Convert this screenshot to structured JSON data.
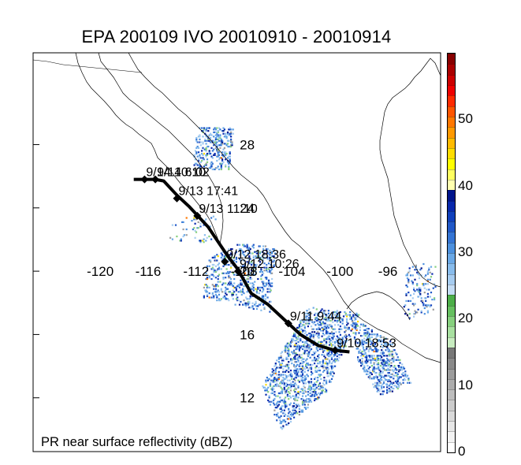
{
  "title": "EPA 200109 IVO 20010910 - 20010914",
  "footer": "PR near surface reflectivity (dBZ)",
  "chart_data": {
    "type": "map",
    "title": "EPA 200109 IVO 20010910 - 20010914",
    "lon_range": [
      -125.6,
      -91.6
    ],
    "lat_range": [
      8.6,
      33.8
    ],
    "lon_labels": [
      {
        "lon": -120,
        "text": "-120"
      },
      {
        "lon": -116,
        "text": "-116"
      },
      {
        "lon": -112,
        "text": "-112"
      },
      {
        "lon": -108,
        "text": "-108"
      },
      {
        "lon": -104,
        "text": "-104"
      },
      {
        "lon": -100,
        "text": "-100"
      },
      {
        "lon": -96,
        "text": "-96"
      }
    ],
    "lat_labels": [
      {
        "lat": 28,
        "text": "28"
      },
      {
        "lat": 24,
        "text": "24"
      },
      {
        "lat": 20,
        "text": "20"
      },
      {
        "lat": 16,
        "text": "16"
      },
      {
        "lat": 12,
        "text": "12"
      }
    ],
    "track": [
      {
        "lon": -117.2,
        "lat": 25.8
      },
      {
        "lon": -116.4,
        "lat": 25.8
      },
      {
        "lon": -115.4,
        "lat": 25.8
      },
      {
        "lon": -114.7,
        "lat": 25.7
      },
      {
        "lon": -113.6,
        "lat": 24.8
      },
      {
        "lon": -112.6,
        "lat": 24.1
      },
      {
        "lon": -111.0,
        "lat": 22.8
      },
      {
        "lon": -109.4,
        "lat": 21.0
      },
      {
        "lon": -108.5,
        "lat": 20.1
      },
      {
        "lon": -107.4,
        "lat": 18.6
      },
      {
        "lon": -106.0,
        "lat": 17.9
      },
      {
        "lon": -104.3,
        "lat": 16.7
      },
      {
        "lon": -103.3,
        "lat": 16.0
      },
      {
        "lon": -101.8,
        "lat": 15.3
      },
      {
        "lon": -100.4,
        "lat": 15.0
      },
      {
        "lon": -99.2,
        "lat": 14.9
      }
    ],
    "track_points": [
      {
        "lon": -116.3,
        "lat": 25.8,
        "label": "9/14 10:10"
      },
      {
        "lon": -115.4,
        "lat": 25.8,
        "label": "9/14 6:02"
      },
      {
        "lon": -113.6,
        "lat": 24.6,
        "label": "9/13 17:41"
      },
      {
        "lon": -111.9,
        "lat": 23.5,
        "label": "9/13 11:10"
      },
      {
        "lon": -109.6,
        "lat": 20.6,
        "label": "9/12 18:36"
      },
      {
        "lon": -108.5,
        "lat": 20.0,
        "label": "9/12 10:26"
      },
      {
        "lon": -104.3,
        "lat": 16.7,
        "label": "9/11 9:44"
      },
      {
        "lon": -100.4,
        "lat": 15.0,
        "label": "9/10 18:53"
      }
    ],
    "colorbar": {
      "label": "PR near surface reflectivity (dBZ)",
      "min": 0,
      "max": 60,
      "ticks": [
        {
          "value": 0,
          "text": "0"
        },
        {
          "value": 10,
          "text": "10"
        },
        {
          "value": 20,
          "text": "20"
        },
        {
          "value": 30,
          "text": "30"
        },
        {
          "value": 40,
          "text": "40"
        },
        {
          "value": 50,
          "text": "50"
        }
      ],
      "colors": [
        "#ffffff",
        "#f2f2f2",
        "#e6e6e6",
        "#d9d9d9",
        "#cccccc",
        "#bdbdbd",
        "#adadad",
        "#9c9c9c",
        "#8a8a8a",
        "#787878",
        "#c8ecc0",
        "#a8e0a0",
        "#86d07e",
        "#66c060",
        "#4cae48",
        "#c4dcf4",
        "#a6ccf0",
        "#88bcec",
        "#6aa8e6",
        "#4c90de",
        "#3474d4",
        "#2058c8",
        "#1040bc",
        "#0828ac",
        "#00148c",
        "#ffffb0",
        "#ffff60",
        "#ffff00",
        "#ffdd00",
        "#ffbb00",
        "#ff9900",
        "#ff7700",
        "#ff5500",
        "#ff2a00",
        "#ee0000",
        "#cc0000",
        "#aa0000",
        "#880000"
      ]
    }
  }
}
